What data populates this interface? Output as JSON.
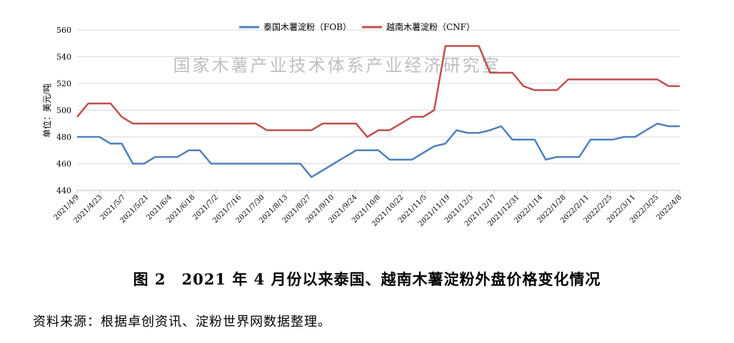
{
  "chart_data": {
    "type": "line",
    "watermark": "国家木薯产业技术体系产业经济研究室",
    "ylabel": "单位：美元/吨",
    "ylim": [
      440,
      560
    ],
    "yticks": [
      440,
      460,
      480,
      500,
      520,
      540,
      560
    ],
    "grid": true,
    "legend_position": "top-center",
    "x_tick_labels": [
      "2021/4/9",
      "2021/4/23",
      "2021/5/7",
      "2021/5/21",
      "2021/6/4",
      "2021/6/18",
      "2021/7/2",
      "2021/7/16",
      "2021/7/30",
      "2021/8/13",
      "2021/8/27",
      "2021/9/10",
      "2021/9/24",
      "2021/10/8",
      "2021/10/22",
      "2021/11/5",
      "2021/11/19",
      "2021/12/3",
      "2021/12/17",
      "2021/12/31",
      "2022/1/14",
      "2022/1/28",
      "2022/2/11",
      "2022/2/25",
      "2022/3/11",
      "2022/3/25",
      "2022/4/8"
    ],
    "series": [
      {
        "name": "泰国木薯淀粉（FOB）",
        "color": "#4f81bd",
        "values": [
          480,
          480,
          480,
          475,
          475,
          460,
          460,
          465,
          465,
          465,
          470,
          470,
          460,
          460,
          460,
          460,
          460,
          460,
          460,
          460,
          460,
          450,
          455,
          460,
          465,
          470,
          470,
          470,
          463,
          463,
          463,
          468,
          473,
          475,
          485,
          483,
          483,
          485,
          488,
          478,
          478,
          478,
          463,
          465,
          465,
          465,
          478,
          478,
          478,
          480,
          480,
          485,
          490,
          488,
          488
        ]
      },
      {
        "name": "越南木薯淀粉（CNF）",
        "color": "#c0504d",
        "values": [
          495,
          505,
          505,
          505,
          495,
          490,
          490,
          490,
          490,
          490,
          490,
          490,
          490,
          490,
          490,
          490,
          490,
          485,
          485,
          485,
          485,
          485,
          490,
          490,
          490,
          490,
          480,
          485,
          485,
          490,
          495,
          495,
          500,
          548,
          548,
          548,
          548,
          528,
          528,
          528,
          518,
          515,
          515,
          515,
          523,
          523,
          523,
          523,
          523,
          523,
          523,
          523,
          523,
          518,
          518
        ]
      }
    ]
  },
  "caption": {
    "figure_no": "图 2",
    "title": "2021 年 4 月份以来泰国、越南木薯淀粉外盘价格变化情况"
  },
  "source": "资料来源：根据卓创资讯、淀粉世界网数据整理。"
}
